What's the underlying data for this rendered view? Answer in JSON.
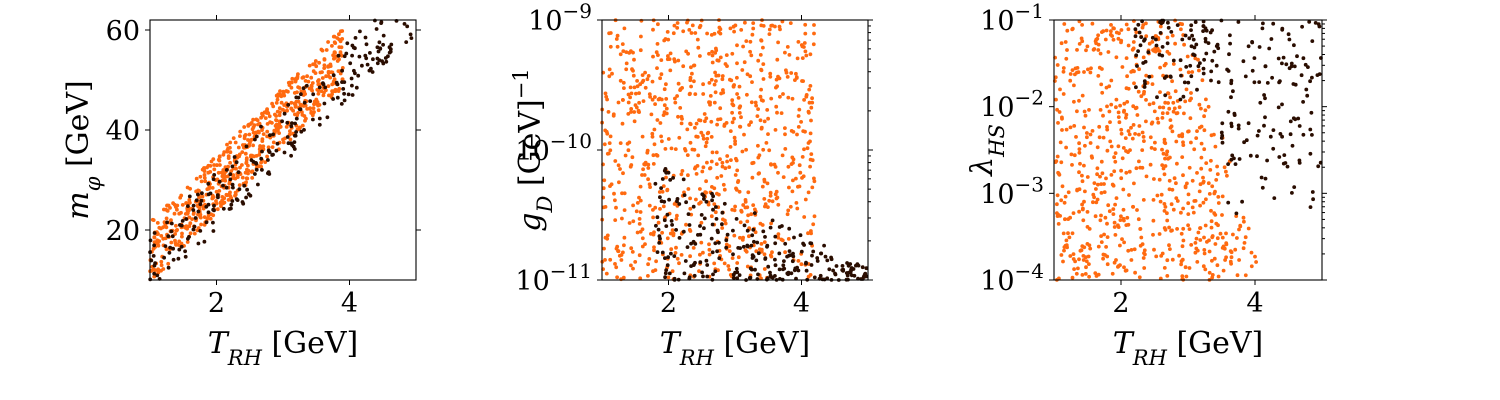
{
  "colors": {
    "orange": "#ff6a10",
    "dark": "#2a0d00",
    "background": "#ffffff"
  },
  "chart_data": [
    {
      "type": "scatter",
      "xlabel": "T_RH [GeV]",
      "ylabel": "m_φ [GeV]",
      "xlim": [
        1.0,
        5.0
      ],
      "ylim": [
        10,
        62
      ],
      "yscale": "linear",
      "xticks": [
        "2",
        "4"
      ],
      "yticks": [
        "20",
        "40",
        "60"
      ],
      "grid": false,
      "series": [
        {
          "color": "orange",
          "generator": "band",
          "count": 650,
          "seed": 11,
          "params": {
            "slope": 13.5,
            "intercept": 2.0,
            "spread": 6.0,
            "xrange": [
              1.0,
              3.9
            ]
          }
        },
        {
          "color": "dark",
          "generator": "band",
          "count": 260,
          "seed": 12,
          "params": {
            "slope": 13.0,
            "intercept": 0.0,
            "spread": 6.0,
            "xrange": [
              1.0,
              5.0
            ]
          }
        }
      ]
    },
    {
      "type": "scatter",
      "xlabel": "T_RH [GeV]",
      "ylabel": "g_D [GeV]^-1",
      "xlim": [
        1.0,
        5.0
      ],
      "ylim": [
        1e-11,
        1e-09
      ],
      "yscale": "log",
      "xticks": [
        "2",
        "4"
      ],
      "yticks": [
        "10^-11",
        "10^-10",
        "10^-9"
      ],
      "grid": false,
      "series": [
        {
          "color": "orange",
          "generator": "uniform",
          "count": 820,
          "seed": 21,
          "params": {
            "xrange": [
              1.0,
              4.2
            ],
            "logyrange": [
              -11,
              -9
            ]
          }
        },
        {
          "color": "dark",
          "generator": "wedge",
          "count": 260,
          "seed": 22,
          "params": {
            "xrange": [
              1.8,
              5.0
            ],
            "logytop": [
              -10.1,
              -10.9
            ],
            "logybottom": -11
          }
        }
      ]
    },
    {
      "type": "scatter",
      "xlabel": "T_RH [GeV]",
      "ylabel": "λ_HS",
      "xlim": [
        1.0,
        5.0
      ],
      "ylim": [
        0.0001,
        0.1
      ],
      "yscale": "log",
      "xticks": [
        "2",
        "4"
      ],
      "yticks": [
        "10^-4",
        "10^-3",
        "10^-2",
        "10^-1"
      ],
      "grid": false,
      "series": [
        {
          "color": "orange",
          "generator": "triangle",
          "count": 700,
          "seed": 31,
          "params": {
            "xrange": [
              1.0,
              4.2
            ],
            "logyrange": [
              -4,
              -1
            ]
          }
        },
        {
          "color": "dark",
          "generator": "upper",
          "count": 230,
          "seed": 32,
          "params": {
            "xrange": [
              2.2,
              5.0
            ],
            "logyrange": [
              -3.4,
              -1
            ]
          }
        }
      ]
    }
  ]
}
